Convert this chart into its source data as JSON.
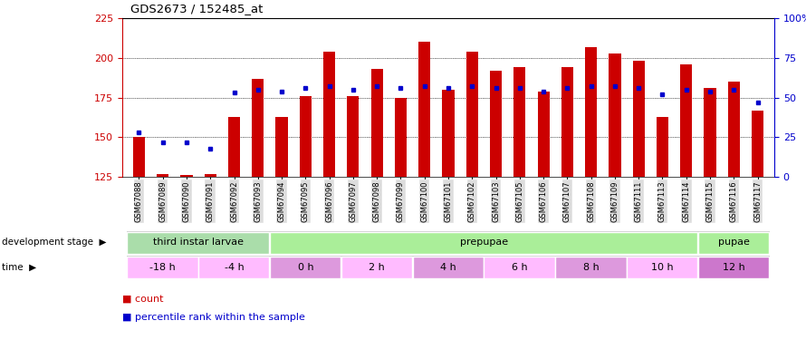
{
  "title": "GDS2673 / 152485_at",
  "samples": [
    "GSM67088",
    "GSM67089",
    "GSM67090",
    "GSM67091",
    "GSM67092",
    "GSM67093",
    "GSM67094",
    "GSM67095",
    "GSM67096",
    "GSM67097",
    "GSM67098",
    "GSM67099",
    "GSM67100",
    "GSM67101",
    "GSM67102",
    "GSM67103",
    "GSM67105",
    "GSM67106",
    "GSM67107",
    "GSM67108",
    "GSM67109",
    "GSM67111",
    "GSM67113",
    "GSM67114",
    "GSM67115",
    "GSM67116",
    "GSM67117"
  ],
  "count_values": [
    150,
    127,
    126,
    127,
    163,
    187,
    163,
    176,
    204,
    176,
    193,
    175,
    210,
    180,
    204,
    192,
    194,
    179,
    194,
    207,
    203,
    198,
    163,
    196,
    181,
    185,
    167
  ],
  "percentile_values": [
    28,
    22,
    22,
    18,
    53,
    55,
    54,
    56,
    57,
    55,
    57,
    56,
    57,
    56,
    57,
    56,
    56,
    54,
    56,
    57,
    57,
    56,
    52,
    55,
    54,
    55,
    47
  ],
  "ylim_left": [
    125,
    225
  ],
  "ylim_right": [
    0,
    100
  ],
  "yticks_left": [
    125,
    150,
    175,
    200,
    225
  ],
  "yticks_right": [
    0,
    25,
    50,
    75,
    100
  ],
  "bar_color": "#cc0000",
  "dot_color": "#0000cc",
  "bar_bottom": 125,
  "dev_stages": [
    {
      "label": "third instar larvae",
      "start": 0,
      "end": 6,
      "color": "#aaddaa"
    },
    {
      "label": "prepupae",
      "start": 6,
      "end": 24,
      "color": "#aaee99"
    },
    {
      "label": "pupae",
      "start": 24,
      "end": 27,
      "color": "#aaee99"
    }
  ],
  "time_labels": [
    {
      "label": "-18 h",
      "start": 0,
      "end": 3,
      "color": "#ffbbff"
    },
    {
      "label": "-4 h",
      "start": 3,
      "end": 6,
      "color": "#ffbbff"
    },
    {
      "label": "0 h",
      "start": 6,
      "end": 9,
      "color": "#dd99dd"
    },
    {
      "label": "2 h",
      "start": 9,
      "end": 12,
      "color": "#ffbbff"
    },
    {
      "label": "4 h",
      "start": 12,
      "end": 15,
      "color": "#dd99dd"
    },
    {
      "label": "6 h",
      "start": 15,
      "end": 18,
      "color": "#ffbbff"
    },
    {
      "label": "8 h",
      "start": 18,
      "end": 21,
      "color": "#dd99dd"
    },
    {
      "label": "10 h",
      "start": 21,
      "end": 24,
      "color": "#ffbbff"
    },
    {
      "label": "12 h",
      "start": 24,
      "end": 27,
      "color": "#cc77cc"
    }
  ],
  "background_color": "#ffffff",
  "tick_label_color_left": "#cc0000",
  "tick_label_color_right": "#0000cc",
  "xticklabel_bg": "#dddddd",
  "dev_stage_bg": "#cccccc"
}
